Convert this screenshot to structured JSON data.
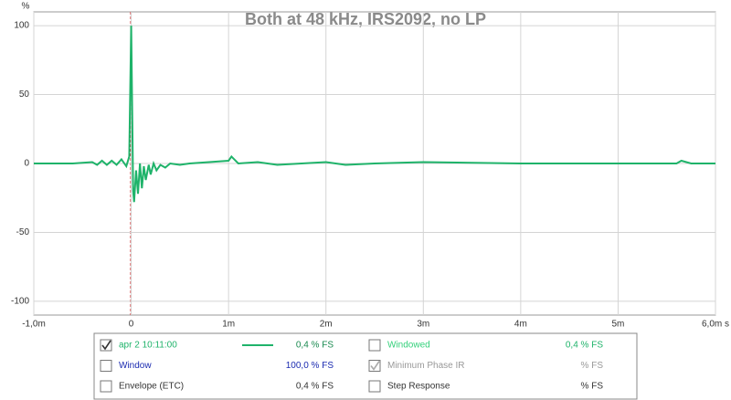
{
  "chart_data": {
    "type": "line",
    "title": "Both at 48 kHz, IRS2092, no LP",
    "y_unit": "%",
    "x": [
      -1.0,
      -0.6,
      -0.4,
      -0.35,
      -0.3,
      -0.25,
      -0.2,
      -0.15,
      -0.1,
      -0.05,
      -0.02,
      0,
      0.01,
      0.02,
      0.03,
      0.05,
      0.07,
      0.09,
      0.11,
      0.13,
      0.15,
      0.18,
      0.2,
      0.23,
      0.26,
      0.3,
      0.35,
      0.4,
      0.5,
      0.6,
      0.8,
      1.0,
      1.03,
      1.1,
      1.3,
      1.5,
      2.0,
      2.2,
      2.5,
      3.0,
      4.0,
      5.0,
      5.6,
      5.65,
      5.75,
      6.0
    ],
    "series": [
      {
        "name": "apr 2 10:11:00",
        "color": "#1fb36a",
        "values": [
          0,
          0,
          1,
          -1,
          2,
          -1,
          2,
          -1,
          3,
          -2,
          5,
          100,
          40,
          -20,
          -28,
          -5,
          -22,
          0,
          -18,
          -2,
          -12,
          -1,
          -8,
          0,
          -5,
          -1,
          -3,
          0,
          -1,
          0,
          1,
          2,
          5,
          0,
          1,
          -1,
          1,
          -1,
          0,
          1,
          0,
          0,
          0,
          2,
          0,
          0
        ]
      }
    ],
    "xlim": [
      -1.0,
      6.0
    ],
    "xticks": [
      {
        "value": -1,
        "label": "-1,0m"
      },
      0,
      {
        "value": 1,
        "label": "1m"
      },
      {
        "value": 2,
        "label": "2m"
      },
      {
        "value": 3,
        "label": "3m"
      },
      {
        "value": 4,
        "label": "4m"
      },
      {
        "value": 5,
        "label": "5m"
      },
      {
        "value": 6,
        "label": "6,0m s"
      }
    ],
    "ylim": [
      -110,
      110
    ],
    "yticks": [
      100,
      50,
      0,
      -50,
      -100
    ],
    "grid": true
  },
  "panel": {
    "rows": [
      {
        "label": "apr 2 10:11:00",
        "value": "0,4 % FS",
        "checked": true
      },
      {
        "label": "Window",
        "value": "100,0 % FS",
        "checked": false
      },
      {
        "label": "Envelope (ETC)",
        "value": "0,4 % FS",
        "checked": false
      },
      {
        "label": "Windowed",
        "value": "0,4 % FS",
        "checked": false
      },
      {
        "label": "Minimum Phase IR",
        "value": "% FS",
        "checked": true
      },
      {
        "label": "Step Response",
        "value": "% FS",
        "checked": false
      }
    ]
  }
}
